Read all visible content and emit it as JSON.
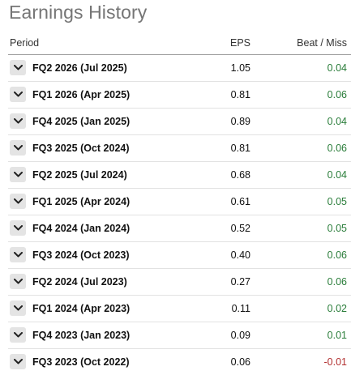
{
  "title": "Earnings History",
  "columns": {
    "period": "Period",
    "eps": "EPS",
    "beat_miss": "Beat / Miss"
  },
  "icons": {
    "row_toggle": "chevron-down-icon"
  },
  "colors": {
    "positive": "#2a7d3a",
    "negative": "#b23030",
    "title": "#757575"
  },
  "rows": [
    {
      "period": "FQ2 2026 (Jul 2025)",
      "eps": "1.05",
      "beat_miss": "0.04",
      "sign": "pos"
    },
    {
      "period": "FQ1 2026 (Apr 2025)",
      "eps": "0.81",
      "beat_miss": "0.06",
      "sign": "pos"
    },
    {
      "period": "FQ4 2025 (Jan 2025)",
      "eps": "0.89",
      "beat_miss": "0.04",
      "sign": "pos"
    },
    {
      "period": "FQ3 2025 (Oct 2024)",
      "eps": "0.81",
      "beat_miss": "0.06",
      "sign": "pos"
    },
    {
      "period": "FQ2 2025 (Jul 2024)",
      "eps": "0.68",
      "beat_miss": "0.04",
      "sign": "pos"
    },
    {
      "period": "FQ1 2025 (Apr 2024)",
      "eps": "0.61",
      "beat_miss": "0.05",
      "sign": "pos"
    },
    {
      "period": "FQ4 2024 (Jan 2024)",
      "eps": "0.52",
      "beat_miss": "0.05",
      "sign": "pos"
    },
    {
      "period": "FQ3 2024 (Oct 2023)",
      "eps": "0.40",
      "beat_miss": "0.06",
      "sign": "pos"
    },
    {
      "period": "FQ2 2024 (Jul 2023)",
      "eps": "0.27",
      "beat_miss": "0.06",
      "sign": "pos"
    },
    {
      "period": "FQ1 2024 (Apr 2023)",
      "eps": "0.11",
      "beat_miss": "0.02",
      "sign": "pos"
    },
    {
      "period": "FQ4 2023 (Jan 2023)",
      "eps": "0.09",
      "beat_miss": "0.01",
      "sign": "pos"
    },
    {
      "period": "FQ3 2023 (Oct 2022)",
      "eps": "0.06",
      "beat_miss": "-0.01",
      "sign": "neg"
    }
  ]
}
